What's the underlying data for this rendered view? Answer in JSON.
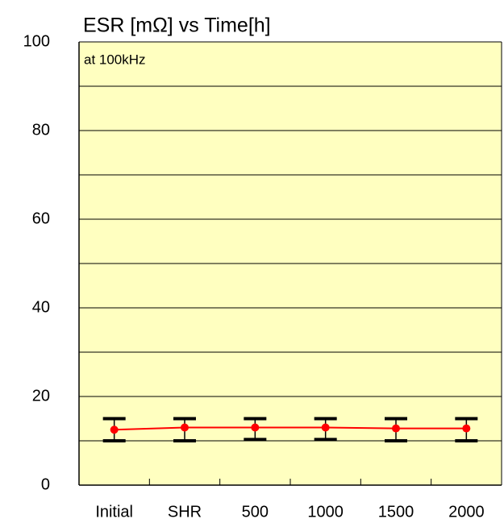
{
  "chart_data": {
    "type": "line",
    "title": "ESR [mΩ] vs Time[h]",
    "annotation": "at 100kHz",
    "categories": [
      "Initial",
      "SHR",
      "500",
      "1000",
      "1500",
      "2000"
    ],
    "series": [
      {
        "color": "#ff0000",
        "values": [
          12.5,
          13,
          13,
          13,
          12.8,
          12.8
        ],
        "upper": [
          15,
          15,
          15,
          15,
          15,
          15
        ],
        "lower": [
          10,
          10,
          10.3,
          10.3,
          10,
          10
        ]
      }
    ],
    "ylim": [
      0,
      100
    ],
    "yticks": [
      0,
      20,
      40,
      60,
      80,
      100
    ],
    "minor_yticks": [
      10,
      30,
      50,
      70,
      90
    ],
    "grid": true,
    "background": "#ffffc0"
  }
}
